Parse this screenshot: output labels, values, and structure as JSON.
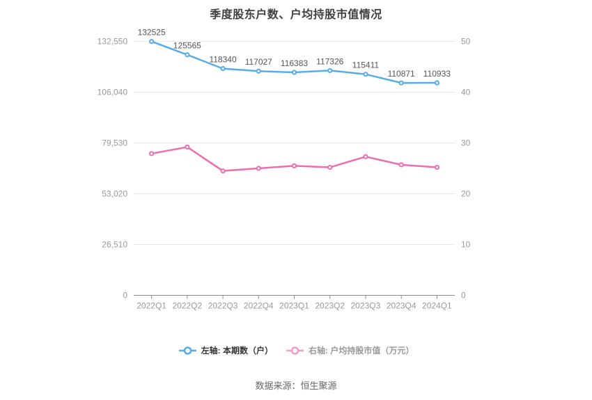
{
  "title": "季度股东户数、户均持股市值情况",
  "source_note": "数据来源：恒生聚源",
  "colors": {
    "shareholders_line": "#56abe9",
    "market_value_line": "#ec6ead",
    "legend_market_value_marker": "#f09cc9",
    "grid_line": "#e5e8f0",
    "axis_line": "#888888",
    "axis_label": "#999999",
    "data_label": "#555555",
    "title_text": "#404040",
    "legend_left_text": "#333333",
    "legend_right_text": "#999999",
    "source_text": "#666666",
    "background": "#ffffff"
  },
  "legend": {
    "left": {
      "label": "左轴: 本期数（户）"
    },
    "right": {
      "label": "右轴: 户均持股市值（万元）"
    }
  },
  "chart_data": {
    "type": "line",
    "title": "季度股东户数、户均持股市值情况",
    "categories": [
      "2022Q1",
      "2022Q2",
      "2022Q3",
      "2022Q4",
      "2023Q1",
      "2023Q2",
      "2023Q3",
      "2023Q4",
      "2024Q1"
    ],
    "series": [
      {
        "name": "本期数（户）",
        "yaxis": "left",
        "color": "#56abe9",
        "values": [
          132525,
          125565,
          118340,
          117027,
          116383,
          117326,
          115411,
          110871,
          110933
        ],
        "show_labels": true
      },
      {
        "name": "户均持股市值（万元）",
        "yaxis": "right",
        "color": "#ec6ead",
        "values": [
          27.9,
          29.2,
          24.5,
          25.0,
          25.5,
          25.2,
          27.3,
          25.7,
          25.2
        ],
        "show_labels": false
      }
    ],
    "left_axis": {
      "min": 0,
      "max": 132550,
      "ticks": [
        "0",
        "26,510",
        "53,020",
        "79,530",
        "106,040",
        "132,550"
      ]
    },
    "right_axis": {
      "min": 0,
      "max": 50,
      "ticks": [
        "0",
        "10",
        "20",
        "30",
        "40",
        "50"
      ]
    },
    "grid": true,
    "legend_position": "bottom"
  }
}
